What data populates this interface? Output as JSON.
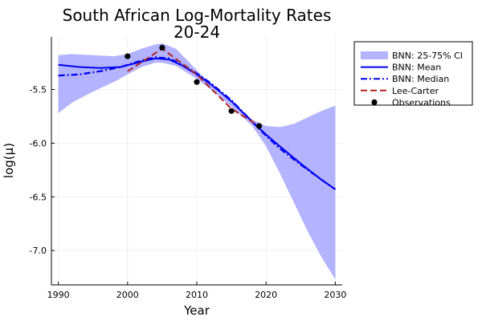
{
  "chart_data": {
    "type": "line",
    "title": "South African Log-Mortality Rates",
    "subtitle": "20-24",
    "xlabel": "Year",
    "ylabel": "log(μ)",
    "xlim": [
      1989,
      2031
    ],
    "ylim": [
      -7.32,
      -5.01
    ],
    "xticks": [
      1990,
      2000,
      2010,
      2020,
      2030
    ],
    "yticks": [
      -5.5,
      -6.0,
      -6.5,
      -7.0
    ],
    "ytick_labels": [
      "-5.5",
      "-6.0",
      "-6.5",
      "-7.0"
    ],
    "grid": true,
    "legend_position": "top-right outside",
    "colors": {
      "band": "#b3b3ff",
      "mean": "#0000ee",
      "median": "#0000ee",
      "lee_carter": "#b22222",
      "observations": "#000000"
    },
    "band": {
      "name": "BNN: 25-75% CI",
      "x": [
        1990,
        1992,
        1995,
        1998,
        2000,
        2002,
        2004,
        2005,
        2007,
        2010,
        2013,
        2015,
        2018,
        2020,
        2022,
        2024,
        2026,
        2028,
        2030
      ],
      "upper": [
        -5.18,
        -5.17,
        -5.18,
        -5.19,
        -5.17,
        -5.12,
        -5.08,
        -5.07,
        -5.12,
        -5.32,
        -5.52,
        -5.62,
        -5.78,
        -5.84,
        -5.85,
        -5.82,
        -5.76,
        -5.7,
        -5.65
      ],
      "lower": [
        -5.72,
        -5.62,
        -5.52,
        -5.43,
        -5.36,
        -5.29,
        -5.25,
        -5.25,
        -5.28,
        -5.4,
        -5.55,
        -5.66,
        -5.84,
        -6.03,
        -6.28,
        -6.55,
        -6.82,
        -7.06,
        -7.27
      ]
    },
    "series": [
      {
        "name": "BNN: Mean",
        "x": [
          1990,
          1993,
          1996,
          1999,
          2002,
          2004,
          2006,
          2008,
          2010,
          2012,
          2015,
          2018,
          2020,
          2022,
          2025,
          2028,
          2030
        ],
        "values": [
          -5.27,
          -5.29,
          -5.3,
          -5.29,
          -5.24,
          -5.21,
          -5.22,
          -5.28,
          -5.36,
          -5.45,
          -5.61,
          -5.8,
          -5.92,
          -6.03,
          -6.19,
          -6.34,
          -6.43
        ]
      },
      {
        "name": "BNN: Median",
        "x": [
          1990,
          1993,
          1996,
          1999,
          2002,
          2004,
          2006,
          2008,
          2010,
          2012,
          2015,
          2018,
          2020,
          2022,
          2025,
          2028,
          2030
        ],
        "values": [
          -5.37,
          -5.36,
          -5.33,
          -5.29,
          -5.23,
          -5.2,
          -5.21,
          -5.27,
          -5.35,
          -5.44,
          -5.6,
          -5.8,
          -5.93,
          -6.05,
          -6.2,
          -6.34,
          -6.43
        ]
      },
      {
        "name": "Lee-Carter",
        "x": [
          2000,
          2005,
          2010,
          2015,
          2019
        ],
        "values": [
          -5.33,
          -5.12,
          -5.36,
          -5.68,
          -5.84
        ]
      }
    ],
    "observations": {
      "name": "Observations",
      "x": [
        2000,
        2005,
        2010,
        2015,
        2019
      ],
      "values": [
        -5.19,
        -5.11,
        -5.43,
        -5.7,
        -5.84
      ]
    },
    "legend": [
      {
        "key": "band",
        "label": "BNN: 25-75% CI"
      },
      {
        "key": "mean",
        "label": "BNN: Mean"
      },
      {
        "key": "median",
        "label": "BNN: Median"
      },
      {
        "key": "lee_carter",
        "label": "Lee-Carter"
      },
      {
        "key": "observations",
        "label": "Observations"
      }
    ]
  }
}
